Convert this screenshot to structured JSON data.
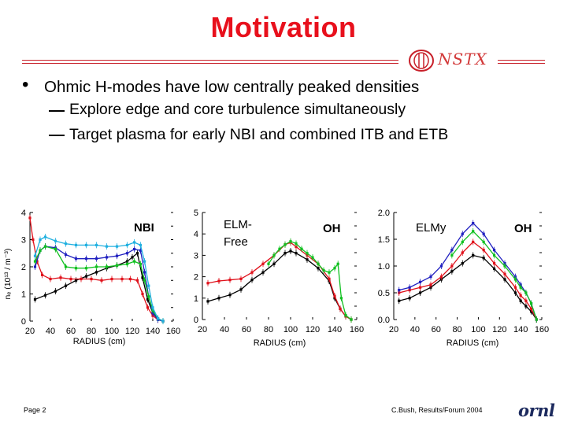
{
  "slide": {
    "title": "Motivation",
    "logo_text": "NSTX",
    "bullet_main": "Ohmic H-modes have low centrally peaked densities",
    "sub_bullets": [
      "Explore edge and core turbulence simultaneously",
      "Target plasma for early NBI and combined ITB and ETB"
    ],
    "footer_left": "Page 2",
    "footer_right": "C.Bush,  Results/Forum 2004",
    "footer_logo": "ornl"
  },
  "colors": {
    "title": "#e8101c",
    "rule": "#c8202a",
    "black_series": "#000000",
    "red_series": "#e0101a",
    "blue_series": "#2020c0",
    "green_series": "#10c020",
    "cyan_series": "#20b0e0"
  },
  "chart_data": [
    {
      "type": "line",
      "xlabel": "RADIUS (cm)",
      "ylabel": "nₑ (10¹³ / m⁻³)",
      "xlim": [
        20,
        160
      ],
      "ylim": [
        0,
        4
      ],
      "xticks": [
        20,
        40,
        60,
        80,
        100,
        120,
        140,
        160
      ],
      "yticks": [
        0,
        1,
        2,
        3,
        4
      ],
      "annotations": [
        "NBI"
      ],
      "series": [
        {
          "name": "black",
          "color": "#000000",
          "x": [
            25,
            35,
            45,
            55,
            65,
            75,
            85,
            95,
            105,
            115,
            120,
            125,
            130,
            135,
            140,
            145,
            150
          ],
          "y": [
            0.8,
            0.95,
            1.1,
            1.3,
            1.5,
            1.65,
            1.8,
            1.95,
            2.05,
            2.2,
            2.35,
            2.5,
            1.6,
            0.8,
            0.3,
            0.1,
            0.0
          ]
        },
        {
          "name": "red",
          "color": "#e0101a",
          "x": [
            20,
            23,
            27,
            32,
            40,
            50,
            60,
            70,
            80,
            90,
            100,
            110,
            118,
            125,
            130,
            135,
            140,
            145,
            150
          ],
          "y": [
            3.8,
            3.0,
            2.2,
            1.7,
            1.55,
            1.6,
            1.55,
            1.55,
            1.55,
            1.5,
            1.55,
            1.55,
            1.55,
            1.5,
            1.0,
            0.5,
            0.2,
            0.05,
            0.0
          ]
        },
        {
          "name": "blue",
          "color": "#2020c0",
          "x": [
            25,
            30,
            35,
            45,
            55,
            65,
            75,
            85,
            95,
            105,
            115,
            122,
            128,
            132,
            136,
            140,
            145,
            150
          ],
          "y": [
            2.0,
            2.6,
            2.75,
            2.7,
            2.45,
            2.3,
            2.3,
            2.3,
            2.35,
            2.4,
            2.5,
            2.65,
            2.6,
            1.8,
            0.9,
            0.3,
            0.05,
            0.0
          ]
        },
        {
          "name": "green",
          "color": "#10c020",
          "x": [
            25,
            30,
            35,
            45,
            55,
            65,
            75,
            85,
            95,
            105,
            115,
            122,
            128,
            132,
            136,
            140,
            145,
            150
          ],
          "y": [
            2.2,
            2.6,
            2.75,
            2.65,
            2.0,
            1.95,
            1.95,
            2.0,
            2.0,
            2.05,
            2.1,
            2.2,
            2.1,
            1.5,
            0.9,
            0.4,
            0.1,
            0.0
          ]
        },
        {
          "name": "cyan",
          "color": "#20b0e0",
          "x": [
            25,
            30,
            35,
            45,
            55,
            65,
            75,
            85,
            95,
            105,
            115,
            122,
            128,
            132,
            136,
            140,
            145,
            150
          ],
          "y": [
            2.4,
            3.0,
            3.1,
            2.95,
            2.85,
            2.8,
            2.8,
            2.8,
            2.75,
            2.75,
            2.8,
            2.9,
            2.8,
            2.2,
            1.3,
            0.5,
            0.1,
            0.0
          ]
        }
      ]
    },
    {
      "type": "line",
      "xlabel": "RADIUS (cm)",
      "xlim": [
        20,
        160
      ],
      "ylim": [
        0,
        5
      ],
      "xticks": [
        20,
        40,
        60,
        80,
        100,
        120,
        140,
        160
      ],
      "yticks": [
        0,
        1,
        2,
        3,
        4,
        5
      ],
      "annotations": [
        "ELM-",
        "Free",
        "OH"
      ],
      "series": [
        {
          "name": "black",
          "color": "#000000",
          "x": [
            25,
            35,
            45,
            55,
            65,
            75,
            85,
            95,
            100,
            105,
            115,
            125,
            135,
            140,
            145,
            150,
            155
          ],
          "y": [
            0.85,
            1.0,
            1.15,
            1.4,
            1.85,
            2.2,
            2.6,
            3.1,
            3.2,
            3.1,
            2.8,
            2.4,
            1.8,
            1.0,
            0.5,
            0.15,
            0.0
          ]
        },
        {
          "name": "red",
          "color": "#e0101a",
          "x": [
            25,
            35,
            45,
            55,
            65,
            75,
            85,
            95,
            100,
            105,
            115,
            125,
            135,
            140,
            145,
            150,
            155
          ],
          "y": [
            1.7,
            1.8,
            1.85,
            1.9,
            2.2,
            2.6,
            3.0,
            3.5,
            3.6,
            3.4,
            3.0,
            2.6,
            1.9,
            1.1,
            0.5,
            0.15,
            0.0
          ]
        },
        {
          "name": "green",
          "color": "#10c020",
          "x": [
            80,
            85,
            90,
            95,
            100,
            105,
            110,
            115,
            120,
            125,
            130,
            135,
            140,
            143,
            146,
            150,
            155
          ],
          "y": [
            2.6,
            3.0,
            3.3,
            3.5,
            3.65,
            3.55,
            3.3,
            3.1,
            2.9,
            2.6,
            2.3,
            2.2,
            2.4,
            2.6,
            1.0,
            0.2,
            0.0
          ]
        }
      ]
    },
    {
      "type": "line",
      "xlabel": "RADIUS (cm)",
      "xlim": [
        20,
        160
      ],
      "ylim": [
        0,
        2
      ],
      "xticks": [
        20,
        40,
        60,
        80,
        100,
        120,
        140,
        160
      ],
      "yticks": [
        0.0,
        0.5,
        1.0,
        1.5,
        2.0
      ],
      "annotations": [
        "ELMy",
        "OH"
      ],
      "series": [
        {
          "name": "black",
          "color": "#000000",
          "x": [
            25,
            35,
            45,
            55,
            65,
            75,
            85,
            95,
            105,
            115,
            125,
            135,
            140,
            145,
            150,
            155
          ],
          "y": [
            0.35,
            0.4,
            0.5,
            0.6,
            0.75,
            0.9,
            1.05,
            1.2,
            1.15,
            0.95,
            0.75,
            0.5,
            0.35,
            0.25,
            0.15,
            0.0
          ]
        },
        {
          "name": "red",
          "color": "#e0101a",
          "x": [
            25,
            35,
            45,
            55,
            65,
            75,
            85,
            95,
            105,
            115,
            125,
            135,
            140,
            145,
            150,
            155
          ],
          "y": [
            0.5,
            0.55,
            0.6,
            0.65,
            0.8,
            1.0,
            1.25,
            1.45,
            1.3,
            1.05,
            0.85,
            0.6,
            0.45,
            0.35,
            0.2,
            0.0
          ]
        },
        {
          "name": "blue",
          "color": "#2020c0",
          "x": [
            25,
            35,
            45,
            55,
            65,
            75,
            85,
            95,
            105,
            115,
            125,
            135,
            140,
            145,
            150,
            155
          ],
          "y": [
            0.55,
            0.6,
            0.7,
            0.8,
            1.0,
            1.3,
            1.6,
            1.8,
            1.6,
            1.3,
            1.05,
            0.8,
            0.65,
            0.5,
            0.3,
            0.0
          ]
        },
        {
          "name": "green",
          "color": "#10c020",
          "x": [
            75,
            85,
            95,
            105,
            115,
            125,
            135,
            140,
            145,
            150,
            155
          ],
          "y": [
            1.2,
            1.45,
            1.65,
            1.45,
            1.2,
            1.0,
            0.75,
            0.6,
            0.5,
            0.3,
            0.0
          ]
        }
      ]
    }
  ]
}
